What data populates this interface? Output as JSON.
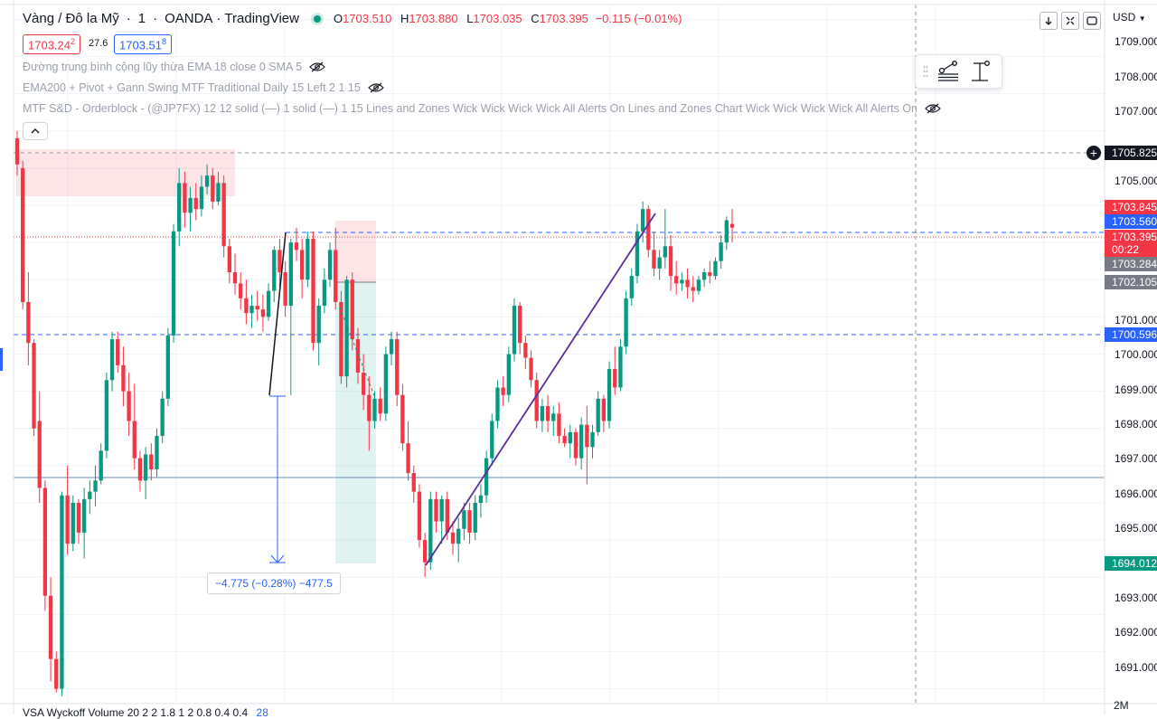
{
  "symbol": {
    "name": "Vàng / Đô la Mỹ",
    "interval": "1",
    "broker": "OANDA",
    "platform": "TradingView"
  },
  "ohlc": {
    "o_label": "O",
    "o": "1703.510",
    "h_label": "H",
    "h": "1703.880",
    "l_label": "L",
    "l": "1703.035",
    "c_label": "C",
    "c": "1703.395",
    "change": "−0.115 (−0.01%)"
  },
  "trade": {
    "sell_price": "1703.24",
    "sell_sup": "2",
    "spread": "27.6",
    "buy_price": "1703.51",
    "buy_sup": "8"
  },
  "indicators": [
    {
      "label": "Đường trung bình cộng lũy thừa EMA 18 close 0 SMA 5",
      "icon": "eye-off-icon"
    },
    {
      "label": "EMA200 + Pivot + Gann Swing MTF Traditional Daily 15 Left 2 1 15",
      "icon": "eye-off-icon"
    },
    {
      "label": "MTF S&D - Orderblock - (@JP7FX) 12 12 solid (—) 1 solid (—) 1 15 Lines and Zones Wick Wick Wick Wick All Alerts On Lines and Zones Chart Wick Wick Wick Wick All Alerts On",
      "icon": "eye-off-icon"
    }
  ],
  "bottom_indicator": {
    "label": "VSA Wyckoff Volume 20 2 2 1.8 1 2 0.8 0.4 0.4",
    "value": "28"
  },
  "currency": "USD",
  "axis": {
    "ticks": [
      "1709.000",
      "1708.000",
      "1707.000",
      "1705.000",
      "1701.000",
      "1700.000",
      "1699.000",
      "1698.000",
      "1697.000",
      "1696.000",
      "1695.000",
      "1693.000",
      "1692.000",
      "1691.000"
    ],
    "volume_label": "2M"
  },
  "price_tags": [
    {
      "value": "1705.825",
      "color": "#131722"
    },
    {
      "value": "1703.845",
      "color": "#f23645"
    },
    {
      "value": "1703.560",
      "color": "#2962ff"
    },
    {
      "value": "1703.395",
      "color": "#f23645"
    },
    {
      "value": "00:22",
      "color": "#f23645"
    },
    {
      "value": "1703.284",
      "color": "#787b86"
    },
    {
      "value": "1702.105",
      "color": "#787b86"
    },
    {
      "value": "1700.596",
      "color": "#2962ff"
    },
    {
      "value": "1694.012",
      "color": "#089981"
    }
  ],
  "measure": {
    "label": "−4.775 (−0.28%) −477.5"
  },
  "colors": {
    "up": "#089981",
    "down": "#f23645",
    "accent": "#2962ff",
    "trend": "#5b2c9e"
  },
  "chart_data": {
    "type": "candlestick",
    "y_range": [
      1690.6,
      1709.4
    ],
    "candles": [
      [
        1705.8,
        1706.0,
        1704.8,
        1705.1
      ],
      [
        1705.0,
        1705.2,
        1701.2,
        1701.4
      ],
      [
        1701.4,
        1702.2,
        1699.7,
        1700.3
      ],
      [
        1700.3,
        1700.4,
        1697.8,
        1698.0
      ],
      [
        1698.2,
        1699.0,
        1696.0,
        1696.4
      ],
      [
        1696.4,
        1696.6,
        1693.1,
        1693.5
      ],
      [
        1693.5,
        1694.0,
        1691.2,
        1691.8
      ],
      [
        1691.8,
        1692.0,
        1690.9,
        1691.0
      ],
      [
        1691.0,
        1696.3,
        1690.8,
        1696.2
      ],
      [
        1696.2,
        1697.0,
        1694.6,
        1694.9
      ],
      [
        1694.9,
        1696.2,
        1694.7,
        1696.0
      ],
      [
        1696.0,
        1696.1,
        1694.9,
        1695.2
      ],
      [
        1695.2,
        1696.4,
        1694.5,
        1696.1
      ],
      [
        1696.1,
        1696.6,
        1695.7,
        1696.3
      ],
      [
        1696.3,
        1697.0,
        1695.9,
        1696.6
      ],
      [
        1696.6,
        1697.6,
        1696.5,
        1697.4
      ],
      [
        1697.4,
        1699.5,
        1697.2,
        1699.3
      ],
      [
        1699.3,
        1700.6,
        1699.0,
        1700.4
      ],
      [
        1700.4,
        1700.6,
        1699.5,
        1699.7
      ],
      [
        1699.7,
        1700.2,
        1698.6,
        1699.0
      ],
      [
        1699.0,
        1699.5,
        1697.8,
        1698.2
      ],
      [
        1698.2,
        1699.2,
        1696.9,
        1697.2
      ],
      [
        1697.2,
        1697.4,
        1696.3,
        1696.6
      ],
      [
        1696.6,
        1697.5,
        1696.1,
        1697.3
      ],
      [
        1697.3,
        1697.6,
        1696.6,
        1696.9
      ],
      [
        1696.9,
        1698.0,
        1696.7,
        1697.8
      ],
      [
        1697.8,
        1699.0,
        1697.6,
        1698.8
      ],
      [
        1698.8,
        1700.7,
        1698.6,
        1700.5
      ],
      [
        1700.5,
        1703.5,
        1700.3,
        1703.3
      ],
      [
        1703.3,
        1705.0,
        1702.9,
        1704.6
      ],
      [
        1704.6,
        1704.9,
        1703.4,
        1703.8
      ],
      [
        1703.8,
        1704.5,
        1703.3,
        1704.2
      ],
      [
        1704.2,
        1704.6,
        1703.6,
        1703.9
      ],
      [
        1703.9,
        1704.8,
        1703.7,
        1704.5
      ],
      [
        1704.5,
        1705.1,
        1704.3,
        1704.8
      ],
      [
        1704.8,
        1705.0,
        1703.9,
        1704.1
      ],
      [
        1704.1,
        1704.9,
        1704.0,
        1704.6
      ],
      [
        1704.6,
        1704.8,
        1702.6,
        1702.9
      ],
      [
        1702.9,
        1703.1,
        1701.9,
        1702.2
      ],
      [
        1702.2,
        1702.7,
        1701.6,
        1701.9
      ],
      [
        1701.9,
        1702.2,
        1701.2,
        1701.5
      ],
      [
        1701.5,
        1702.0,
        1700.8,
        1701.1
      ],
      [
        1701.1,
        1701.6,
        1700.7,
        1701.3
      ],
      [
        1701.3,
        1701.7,
        1700.9,
        1701.2
      ],
      [
        1701.2,
        1701.6,
        1700.6,
        1701.0
      ],
      [
        1701.0,
        1701.9,
        1700.9,
        1701.7
      ],
      [
        1701.7,
        1702.9,
        1701.4,
        1702.8
      ],
      [
        1702.8,
        1703.1,
        1701.8,
        1702.2
      ],
      [
        1702.2,
        1702.5,
        1701.0,
        1701.3
      ],
      [
        1701.3,
        1703.1,
        1698.9,
        1703.0
      ],
      [
        1703.0,
        1703.4,
        1702.5,
        1702.8
      ],
      [
        1702.8,
        1703.1,
        1701.5,
        1702.0
      ],
      [
        1702.0,
        1703.3,
        1701.8,
        1703.1
      ],
      [
        1703.1,
        1703.3,
        1700.1,
        1700.3
      ],
      [
        1700.3,
        1701.5,
        1699.7,
        1701.3
      ],
      [
        1701.3,
        1702.3,
        1701.1,
        1702.0
      ],
      [
        1702.0,
        1703.0,
        1701.8,
        1702.8
      ],
      [
        1702.8,
        1703.4,
        1701.2,
        1701.4
      ],
      [
        1701.4,
        1701.7,
        1699.2,
        1699.4
      ],
      [
        1699.4,
        1702.1,
        1699.1,
        1702.0
      ],
      [
        1702.0,
        1702.2,
        1700.1,
        1700.4
      ],
      [
        1700.4,
        1700.7,
        1699.2,
        1699.5
      ],
      [
        1699.5,
        1700.0,
        1698.5,
        1698.9
      ],
      [
        1698.9,
        1699.4,
        1697.4,
        1698.2
      ],
      [
        1698.2,
        1699.0,
        1698.0,
        1698.8
      ],
      [
        1698.8,
        1699.1,
        1698.2,
        1698.4
      ],
      [
        1698.4,
        1700.2,
        1698.2,
        1700.0
      ],
      [
        1700.0,
        1700.6,
        1699.7,
        1700.4
      ],
      [
        1700.4,
        1700.6,
        1698.6,
        1698.9
      ],
      [
        1698.9,
        1699.2,
        1697.4,
        1697.6
      ],
      [
        1697.6,
        1698.2,
        1696.6,
        1696.8
      ],
      [
        1696.8,
        1697.0,
        1696.0,
        1696.3
      ],
      [
        1696.3,
        1696.5,
        1694.8,
        1695.0
      ],
      [
        1695.0,
        1695.2,
        1694.0,
        1694.4
      ],
      [
        1694.4,
        1696.3,
        1694.2,
        1696.1
      ],
      [
        1696.1,
        1696.3,
        1695.2,
        1695.5
      ],
      [
        1695.5,
        1696.2,
        1694.9,
        1696.1
      ],
      [
        1696.1,
        1696.3,
        1695.0,
        1695.2
      ],
      [
        1695.2,
        1695.5,
        1694.6,
        1694.9
      ],
      [
        1694.9,
        1695.6,
        1694.4,
        1695.3
      ],
      [
        1695.3,
        1696.0,
        1695.0,
        1695.8
      ],
      [
        1695.8,
        1696.0,
        1694.9,
        1695.2
      ],
      [
        1695.2,
        1696.2,
        1695.0,
        1696.0
      ],
      [
        1696.0,
        1696.5,
        1695.6,
        1696.2
      ],
      [
        1696.2,
        1697.4,
        1696.0,
        1697.2
      ],
      [
        1697.2,
        1698.4,
        1697.0,
        1698.2
      ],
      [
        1698.2,
        1699.3,
        1698.0,
        1699.1
      ],
      [
        1699.1,
        1699.4,
        1698.6,
        1698.9
      ],
      [
        1698.9,
        1700.2,
        1698.7,
        1700.0
      ],
      [
        1700.0,
        1701.5,
        1699.8,
        1701.3
      ],
      [
        1701.3,
        1701.4,
        1700.0,
        1700.3
      ],
      [
        1700.3,
        1700.5,
        1699.6,
        1699.9
      ],
      [
        1699.9,
        1700.1,
        1699.1,
        1699.3
      ],
      [
        1699.3,
        1699.5,
        1698.0,
        1698.2
      ],
      [
        1698.2,
        1698.8,
        1697.9,
        1698.6
      ],
      [
        1698.6,
        1698.9,
        1697.9,
        1698.2
      ],
      [
        1698.2,
        1698.6,
        1697.8,
        1698.4
      ],
      [
        1698.4,
        1698.7,
        1697.6,
        1697.8
      ],
      [
        1697.8,
        1698.0,
        1697.5,
        1697.6
      ],
      [
        1697.6,
        1698.1,
        1697.2,
        1697.9
      ],
      [
        1697.9,
        1698.0,
        1697.0,
        1697.2
      ],
      [
        1697.2,
        1698.3,
        1696.9,
        1698.1
      ],
      [
        1698.1,
        1698.6,
        1696.5,
        1697.5
      ],
      [
        1697.5,
        1698.1,
        1697.2,
        1697.9
      ],
      [
        1697.9,
        1699.0,
        1697.8,
        1698.8
      ],
      [
        1698.8,
        1698.9,
        1697.9,
        1698.2
      ],
      [
        1698.2,
        1699.8,
        1698.0,
        1699.6
      ],
      [
        1699.6,
        1700.2,
        1698.9,
        1699.1
      ],
      [
        1699.1,
        1700.4,
        1699.0,
        1700.2
      ],
      [
        1700.2,
        1701.7,
        1700.0,
        1701.5
      ],
      [
        1701.5,
        1702.3,
        1701.3,
        1702.1
      ],
      [
        1702.1,
        1703.5,
        1701.9,
        1703.3
      ],
      [
        1703.3,
        1704.1,
        1703.0,
        1703.9
      ],
      [
        1703.9,
        1704.0,
        1702.6,
        1702.8
      ],
      [
        1702.8,
        1703.3,
        1702.1,
        1702.3
      ],
      [
        1702.3,
        1702.8,
        1702.0,
        1702.6
      ],
      [
        1702.6,
        1703.9,
        1702.3,
        1702.9
      ],
      [
        1702.9,
        1703.2,
        1701.7,
        1702.1
      ],
      [
        1702.1,
        1702.5,
        1701.6,
        1701.9
      ],
      [
        1701.9,
        1702.2,
        1701.7,
        1702.0
      ],
      [
        1702.0,
        1702.3,
        1701.5,
        1701.8
      ],
      [
        1701.8,
        1702.1,
        1701.4,
        1701.7
      ],
      [
        1701.7,
        1702.1,
        1701.6,
        1702.0
      ],
      [
        1702.0,
        1702.3,
        1701.8,
        1702.2
      ],
      [
        1702.2,
        1702.5,
        1701.9,
        1702.1
      ],
      [
        1702.1,
        1702.6,
        1702.0,
        1702.5
      ],
      [
        1702.5,
        1703.2,
        1702.3,
        1703.0
      ],
      [
        1703.0,
        1703.7,
        1702.8,
        1703.6
      ],
      [
        1703.5,
        1703.9,
        1703.0,
        1703.4
      ]
    ]
  }
}
